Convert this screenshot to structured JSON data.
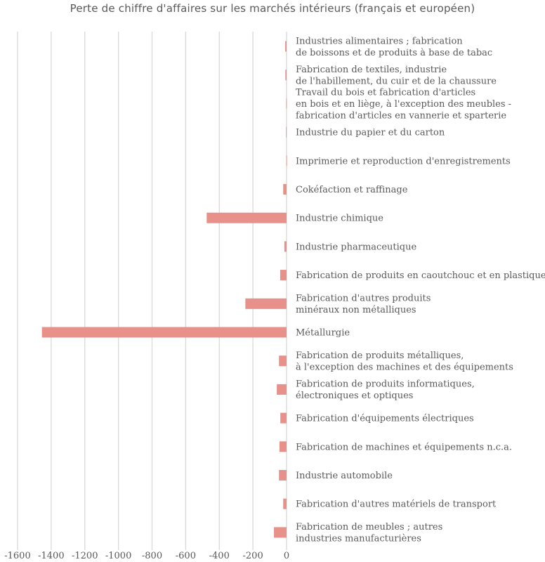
{
  "chart_data": {
    "type": "bar",
    "orientation": "horizontal",
    "title": "Perte de chiffre d'affaires sur les marchés intérieurs (français et européen)",
    "xlabel": "",
    "ylabel": "",
    "xlim": [
      -1600,
      0
    ],
    "x_ticks": [
      -1600,
      -1400,
      -1200,
      -1000,
      -800,
      -600,
      -400,
      -200,
      0
    ],
    "x_tick_labels": [
      "-1600",
      "-1400",
      "-1200",
      "-1000",
      "-800",
      "-600",
      "-400",
      "-200",
      "0"
    ],
    "grid": true,
    "legend": "none",
    "bar_color": "#e8908a",
    "gridline_color": "#d9d9d9",
    "categories": [
      [
        "Industries alimentaires ; fabrication",
        "de boissons et de produits à base de tabac"
      ],
      [
        "Fabrication de textiles, industrie",
        "de l'habillement, du cuir et de la chaussure"
      ],
      [
        "Travail du bois et fabrication d'articles",
        "en bois et en liège, à l'exception des meubles -",
        "fabrication d'articles en vannerie et sparterie"
      ],
      [
        "Industrie du papier et du carton"
      ],
      [
        "Imprimerie et reproduction d'enregistrements"
      ],
      [
        "Cokéfaction et raffinage"
      ],
      [
        "Industrie chimique"
      ],
      [
        "Industrie pharmaceutique"
      ],
      [
        "Fabrication de produits en caoutchouc et en plastique"
      ],
      [
        "Fabrication d'autres produits",
        "minéraux non métalliques"
      ],
      [
        "Métallurgie"
      ],
      [
        "Fabrication de produits métalliques,",
        "à l'exception des machines et des équipements"
      ],
      [
        "Fabrication de produits informatiques,",
        "électroniques et optiques"
      ],
      [
        "Fabrication d'équipements électriques"
      ],
      [
        "Fabrication de machines et équipements n.c.a."
      ],
      [
        "Industrie automobile"
      ],
      [
        "Fabrication d'autres matériels de transport"
      ],
      [
        "Fabrication de meubles ; autres",
        "industries manufacturières"
      ]
    ],
    "values": [
      -8,
      -7,
      -2,
      -3,
      -1,
      -20,
      -475,
      -13,
      -38,
      -245,
      -1455,
      -45,
      -58,
      -37,
      -42,
      -45,
      -20,
      -75
    ]
  }
}
